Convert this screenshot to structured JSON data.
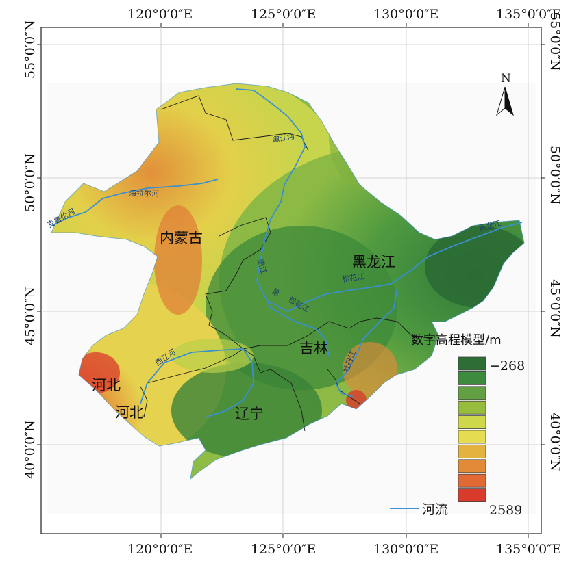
{
  "map": {
    "longitude_labels": [
      "120°0′0″E",
      "125°0′0″E",
      "130°0′0″E",
      "135°0′0″E"
    ],
    "latitude_labels": [
      "55°0′0″N",
      "50°0′0″N",
      "45°0′0″N",
      "40°0′0″N"
    ],
    "north_arrow_label": "N",
    "regions": {
      "neimenggu": "内蒙古",
      "heilongjiang": "黑龙江",
      "jilin": "吉林",
      "liaoning": "辽宁",
      "hebei_1": "河北",
      "hebei_2": "河北"
    },
    "rivers": {
      "keluolun": "克鲁伦河",
      "hailaer": "海拉尔河",
      "nen_top": "嫩江河",
      "nen_mid": "嫩江",
      "songhua_a": "第",
      "songhua_b": "松花江",
      "songhua_c": "松花江",
      "heilong": "黑龙江",
      "xiliao": "西辽河",
      "mudan": "牡丹江"
    },
    "legend": {
      "title": "数字高程模型/m",
      "min_label": "−268",
      "max_label": "2589",
      "river_label": "河流",
      "ramp_colors": [
        "#2c6e35",
        "#3e8a3f",
        "#62a043",
        "#98bd3e",
        "#cdd84a",
        "#e6dc52",
        "#e4b23e",
        "#e28a38",
        "#e16a34",
        "#d93b2c"
      ]
    },
    "colors": {
      "river": "#3a8fd0",
      "boundary": "#1a1a1a",
      "background": "#ffffff"
    }
  }
}
